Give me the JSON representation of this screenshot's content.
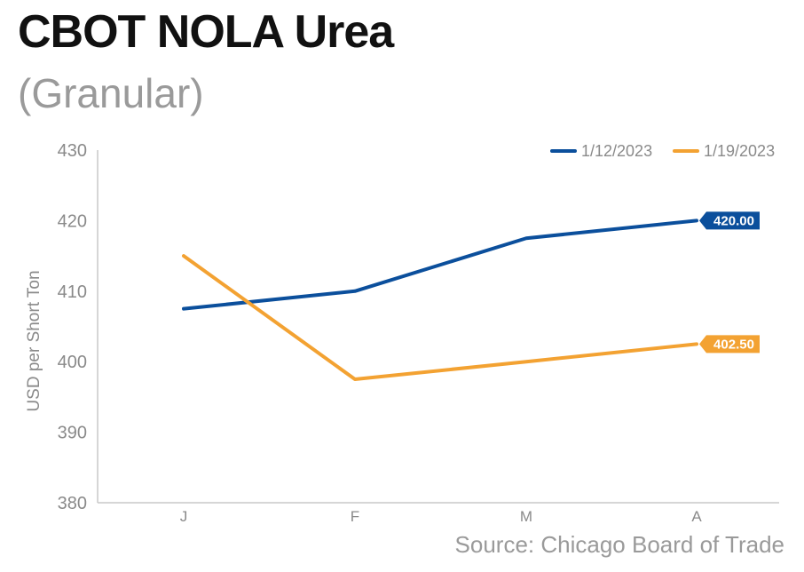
{
  "header": {
    "title": "CBOT NOLA Urea",
    "subtitle": "(Granular)"
  },
  "footer": {
    "source": "Source: Chicago Board of Trade"
  },
  "chart_data": {
    "type": "line",
    "categories": [
      "J",
      "F",
      "M",
      "A"
    ],
    "ylabel": "USD per Short Ton",
    "ylim": [
      380,
      430
    ],
    "yticks": [
      380,
      390,
      400,
      410,
      420,
      430
    ],
    "grid": false,
    "legend_placement": "top-right",
    "series": [
      {
        "name": "1/12/2023",
        "color": "#0b4f9c",
        "values": [
          407.5,
          410,
          417.5,
          420
        ],
        "end_label": "420.00"
      },
      {
        "name": "1/19/2023",
        "color": "#f3a232",
        "values": [
          415,
          397.5,
          400,
          402.5
        ],
        "end_label": "402.50"
      }
    ]
  }
}
